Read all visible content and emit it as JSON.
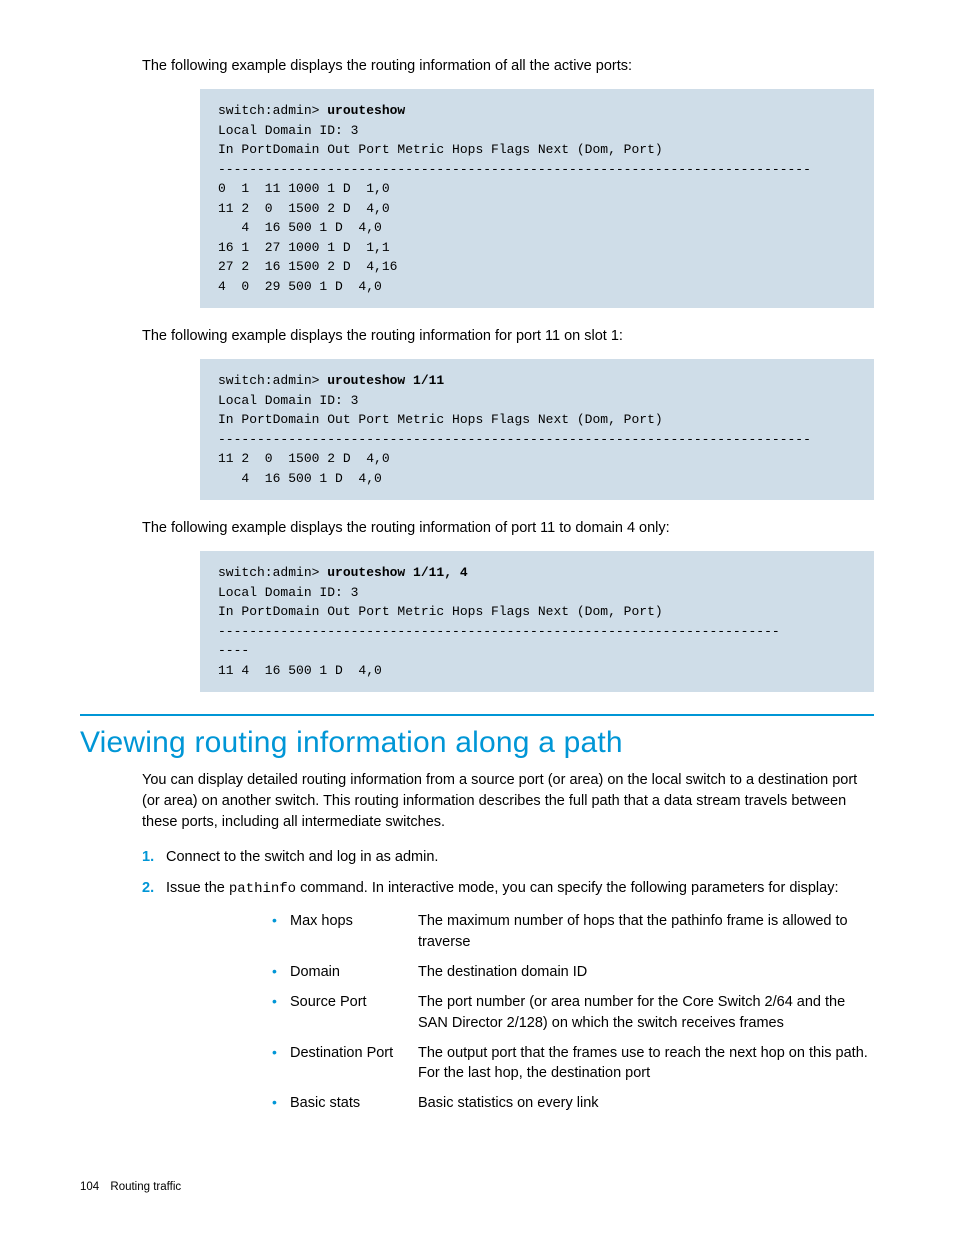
{
  "intro1": "The following example displays the routing information of all the active ports:",
  "code1": {
    "prompt": "switch:admin> ",
    "cmd": "urouteshow",
    "lines": [
      "Local Domain ID: 3",
      "In PortDomain Out Port Metric Hops Flags Next (Dom, Port)",
      "----------------------------------------------------------------------------",
      "0  1  11 1000 1 D  1,0",
      "11 2  0  1500 2 D  4,0",
      "   4  16 500 1 D  4,0",
      "16 1  27 1000 1 D  1,1",
      "27 2  16 1500 2 D  4,16",
      "4  0  29 500 1 D  4,0"
    ]
  },
  "intro2": "The following example displays the routing information for port 11 on slot 1:",
  "code2": {
    "prompt": "switch:admin> ",
    "cmd": "urouteshow 1/11",
    "lines": [
      "Local Domain ID: 3",
      "In PortDomain Out Port Metric Hops Flags Next (Dom, Port)",
      "----------------------------------------------------------------------------",
      "11 2  0  1500 2 D  4,0",
      "   4  16 500 1 D  4,0"
    ]
  },
  "intro3": "The following example displays the routing information of port 11 to domain 4 only:",
  "code3": {
    "prompt": "switch:admin> ",
    "cmd": "urouteshow 1/11, 4",
    "lines": [
      "Local Domain ID: 3",
      "In PortDomain Out Port Metric Hops Flags Next (Dom, Port)",
      "------------------------------------------------------------------------",
      "----",
      "11 4  16 500 1 D  4,0"
    ]
  },
  "section": {
    "title": "Viewing routing information along a path",
    "intro": "You can display detailed routing information from a source port (or area) on the local switch to a destination port (or area) on another switch. This routing information describes the full path that a data stream travels between these ports, including all intermediate switches.",
    "steps": {
      "s1": "Connect to the switch and log in as admin.",
      "s2_pre": "Issue the ",
      "s2_cmd": "pathinfo",
      "s2_post": " command. In interactive mode, you can specify the following parameters for display:"
    },
    "params": [
      {
        "name": "Max hops",
        "desc": "The maximum number of hops that the pathinfo frame is allowed to traverse"
      },
      {
        "name": "Domain",
        "desc": "The destination domain ID"
      },
      {
        "name": "Source Port",
        "desc": "The port number (or area number for the Core Switch 2/64 and the SAN Director 2/128) on which the switch receives frames"
      },
      {
        "name": "Destination Port",
        "desc": "The output port that the frames use to reach the next hop on this path. For the last hop, the destination port"
      },
      {
        "name": "Basic stats",
        "desc": "Basic statistics on every link"
      }
    ]
  },
  "footer": {
    "page": "104",
    "chapter": "Routing traffic"
  }
}
